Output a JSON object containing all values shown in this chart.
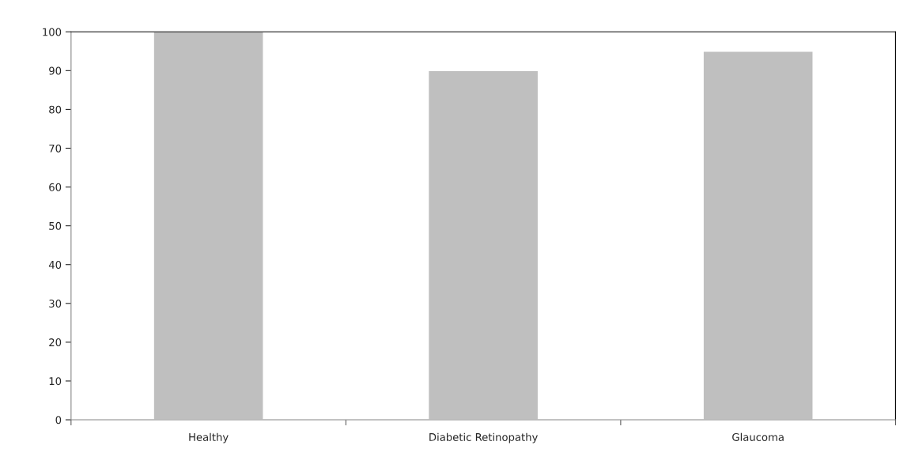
{
  "chart_data": {
    "type": "bar",
    "categories": [
      "Healthy",
      "Diabetic Retinopathy",
      "Glaucoma"
    ],
    "values": [
      100,
      90,
      95
    ],
    "color": "#bfbfbf",
    "ylim": [
      0,
      100
    ],
    "yticks": [
      0,
      10,
      20,
      30,
      40,
      50,
      60,
      70,
      80,
      90,
      100
    ],
    "grid": false,
    "legend": false
  }
}
